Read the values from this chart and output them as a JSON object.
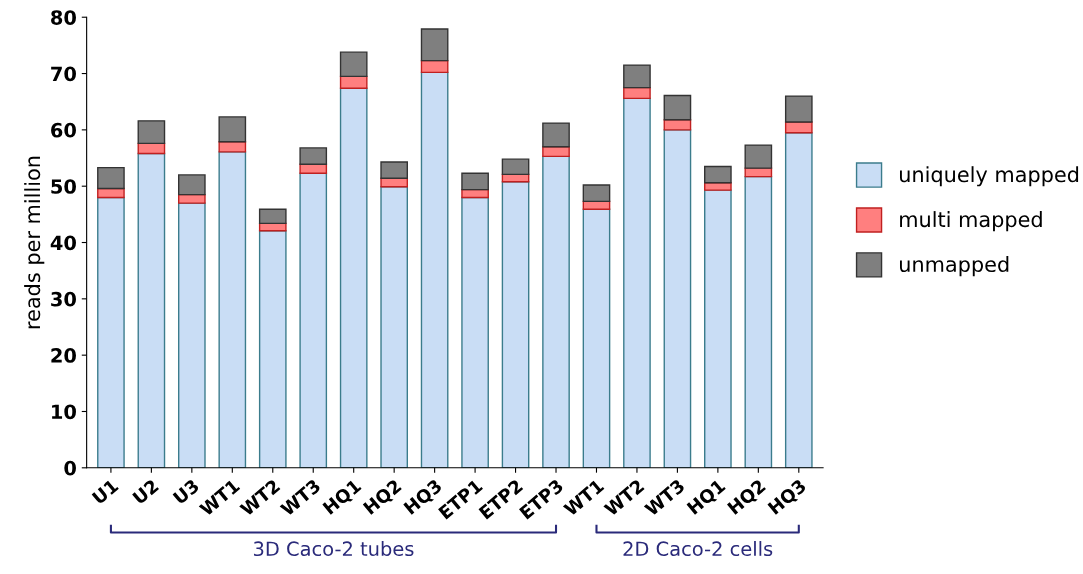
{
  "chart_data": {
    "type": "bar",
    "stacked": true,
    "ylabel": "reads per million",
    "categories": [
      "U1",
      "U2",
      "U3",
      "WT1",
      "WT2",
      "WT3",
      "HQ1",
      "HQ2",
      "HQ3",
      "ETP1",
      "ETP2",
      "ETP3",
      "WT1",
      "WT2",
      "WT3",
      "HQ1",
      "HQ2",
      "HQ3"
    ],
    "series": [
      {
        "name": "uniquely mapped",
        "color": "#c9ddf5",
        "values": [
          48.0,
          55.8,
          47.0,
          56.1,
          42.1,
          52.3,
          67.4,
          49.9,
          70.2,
          48.0,
          50.8,
          55.3,
          45.9,
          65.6,
          60.0,
          49.3,
          51.7,
          59.5
        ]
      },
      {
        "name": "multi mapped",
        "color": "#ff7f7f",
        "values": [
          1.6,
          1.8,
          1.5,
          1.8,
          1.3,
          1.6,
          2.1,
          1.5,
          2.1,
          1.4,
          1.3,
          1.7,
          1.4,
          1.9,
          1.8,
          1.3,
          1.5,
          1.9
        ]
      },
      {
        "name": "unmapped",
        "color": "#7f7f7f",
        "values": [
          3.7,
          4.0,
          3.5,
          4.4,
          2.5,
          2.9,
          4.3,
          2.9,
          5.6,
          2.9,
          2.7,
          4.2,
          2.9,
          4.0,
          4.3,
          2.9,
          4.1,
          4.6
        ]
      }
    ],
    "ylim": [
      0,
      80
    ],
    "yticks": [
      0,
      10,
      20,
      30,
      40,
      50,
      60,
      70,
      80
    ],
    "grid": false,
    "legend": "right",
    "annotations": [
      "3D Caco-2 tubes",
      "2D Caco-2 cells"
    ]
  }
}
